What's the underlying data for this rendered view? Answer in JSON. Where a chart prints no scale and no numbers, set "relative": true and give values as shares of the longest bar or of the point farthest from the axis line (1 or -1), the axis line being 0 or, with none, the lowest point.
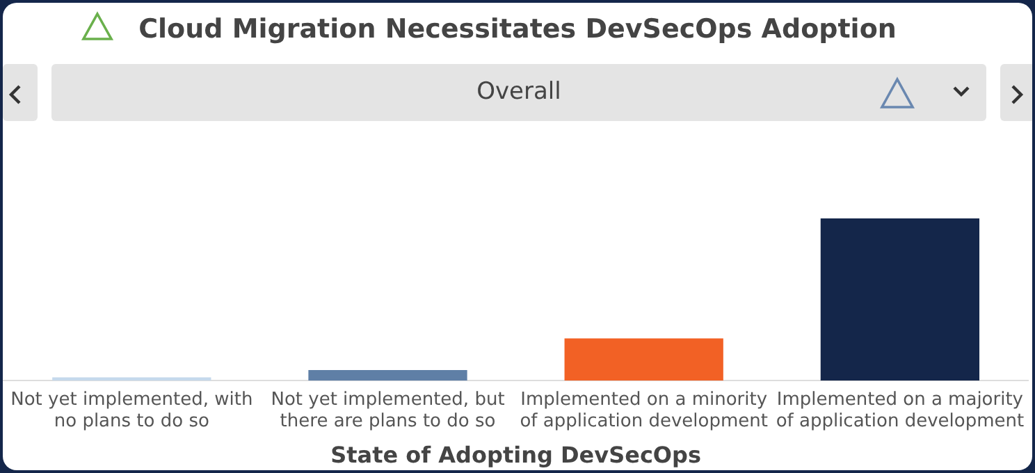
{
  "chart_data": {
    "type": "bar",
    "title": "Cloud Migration Necessitates DevSecOps Adoption",
    "subtitle": "Overall",
    "xlabel": "State of Adopting DevSecOps",
    "categories": [
      "Not yet implemented, with no plans to do so",
      "Not yet implemented, but there are plans to do so",
      "Implemented on a minority of application development",
      "Implemented on a majority of application development"
    ],
    "values": [
      0.02,
      0.065,
      0.26,
      1
    ],
    "colors": [
      "#c5d9ec",
      "#5f7fa6",
      "#f26125",
      "#14264a"
    ],
    "relative": true,
    "grid": false,
    "legend": false
  }
}
